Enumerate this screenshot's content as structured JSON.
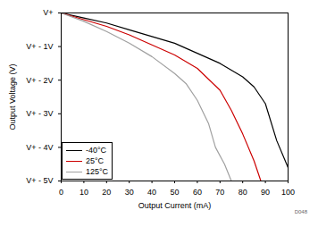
{
  "chart_data": {
    "type": "line",
    "xlabel": "Output Current (mA)",
    "ylabel": "Output Voltage (V)",
    "xlim": [
      0,
      100
    ],
    "xticks": [
      0,
      10,
      20,
      30,
      40,
      50,
      60,
      70,
      80,
      90,
      100
    ],
    "ylim": [
      -5,
      0
    ],
    "yticks": [
      {
        "value": 0,
        "label": "V+"
      },
      {
        "value": -1,
        "label": "V+ - 1V"
      },
      {
        "value": -2,
        "label": "V+ - 2V"
      },
      {
        "value": -3,
        "label": "V+ - 3V"
      },
      {
        "value": -4,
        "label": "V+ - 4V"
      },
      {
        "value": -5,
        "label": "V+ - 5V"
      }
    ],
    "grid": false,
    "legend": "lower left",
    "annotations": [
      "D048"
    ],
    "series": [
      {
        "name": "-40°C",
        "color": "#000000",
        "x": [
          0,
          10,
          20,
          30,
          40,
          50,
          60,
          70,
          80,
          85,
          90,
          95,
          100
        ],
        "values": [
          0,
          -0.15,
          -0.3,
          -0.5,
          -0.7,
          -0.9,
          -1.2,
          -1.5,
          -1.9,
          -2.2,
          -2.7,
          -3.8,
          -4.6
        ]
      },
      {
        "name": "25°C",
        "color": "#cc0000",
        "x": [
          0,
          10,
          20,
          30,
          40,
          50,
          60,
          70,
          75,
          80,
          85,
          88
        ],
        "values": [
          0,
          -0.2,
          -0.4,
          -0.65,
          -0.95,
          -1.25,
          -1.65,
          -2.3,
          -2.9,
          -3.6,
          -4.4,
          -5
        ]
      },
      {
        "name": "125°C",
        "color": "#a0a0a0",
        "x": [
          0,
          10,
          20,
          30,
          40,
          50,
          55,
          60,
          65,
          68,
          72,
          75
        ],
        "values": [
          0,
          -0.25,
          -0.55,
          -0.9,
          -1.3,
          -1.8,
          -2.1,
          -2.6,
          -3.3,
          -4.0,
          -4.5,
          -5
        ]
      }
    ]
  }
}
